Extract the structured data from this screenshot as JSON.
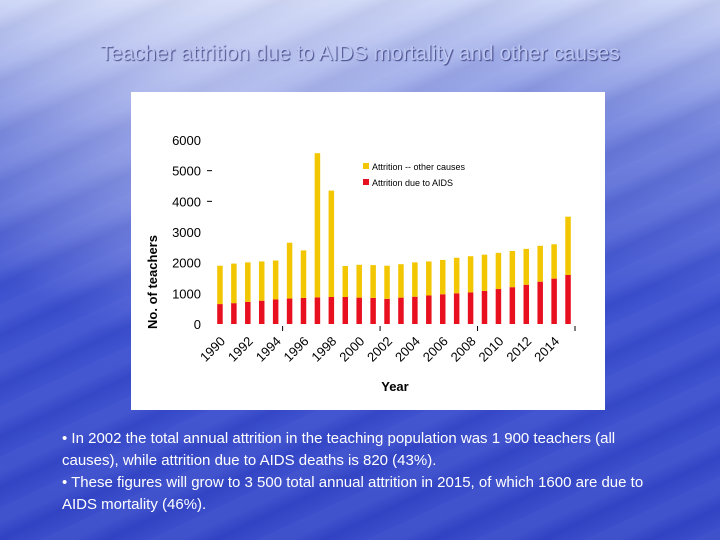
{
  "title": "Teacher attrition due to AIDS mortality and other causes",
  "notes": [
    "• In 2002 the total annual attrition in the teaching population was 1 900 teachers (all causes), while attrition due to AIDS deaths is 820 (43%).",
    "• These figures will grow to 3 500 total annual attrition in 2015, of which 1600 are due to AIDS mortality (46%)."
  ],
  "chart_data": {
    "type": "bar",
    "stacked": true,
    "xlabel": "Year",
    "ylabel": "No. of teachers",
    "ylim": [
      0,
      6000
    ],
    "yticks": [
      "0",
      "1000",
      "2000",
      "3000",
      "4000",
      "5000",
      "6000"
    ],
    "categories": [
      1990,
      1991,
      1992,
      1993,
      1994,
      1995,
      1996,
      1997,
      1998,
      1999,
      2000,
      2001,
      2002,
      2003,
      2004,
      2005,
      2006,
      2007,
      2008,
      2009,
      2010,
      2011,
      2012,
      2013,
      2014,
      2015
    ],
    "xtick_labels": [
      "1990",
      "1992",
      "1994",
      "1996",
      "1998",
      "2000",
      "2002",
      "2004",
      "2006",
      "2008",
      "2010",
      "2012",
      "2014"
    ],
    "series": [
      {
        "name": "Attrition due to AIDS",
        "color": "#e8101f",
        "values": [
          650,
          680,
          720,
          760,
          800,
          830,
          850,
          870,
          880,
          880,
          860,
          850,
          820,
          860,
          890,
          930,
          970,
          1000,
          1030,
          1080,
          1140,
          1200,
          1280,
          1380,
          1480,
          1600
        ]
      },
      {
        "name": "Attrition -- other causes",
        "color": "#f2c600",
        "values": [
          1250,
          1290,
          1290,
          1280,
          1270,
          1820,
          1550,
          4700,
          3470,
          1010,
          1070,
          1070,
          1080,
          1090,
          1120,
          1110,
          1120,
          1160,
          1180,
          1180,
          1180,
          1180,
          1170,
          1170,
          1120,
          1900
        ]
      }
    ],
    "legend_position": "top-right",
    "grid": false
  }
}
